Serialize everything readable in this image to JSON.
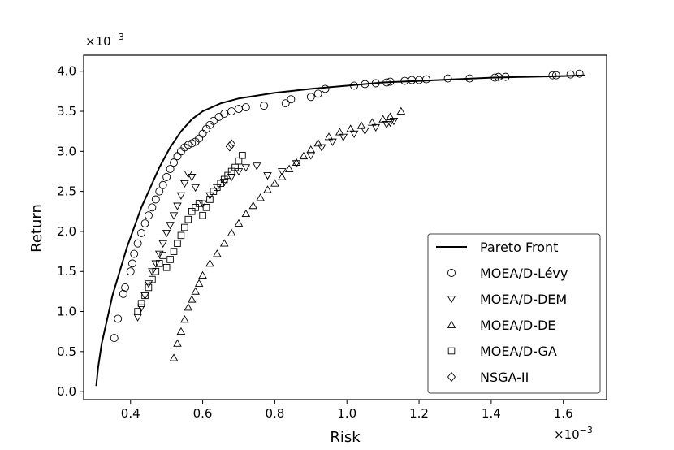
{
  "chart_data": {
    "type": "scatter",
    "title": "",
    "xlabel": "Risk",
    "ylabel": "Return",
    "x_multiplier": "×10",
    "x_multiplier_exp": "−3",
    "y_multiplier": "×10",
    "y_multiplier_exp": "−3",
    "xlim": [
      0.27,
      1.72
    ],
    "ylim": [
      -0.1,
      4.2
    ],
    "xticks": [
      0.4,
      0.6,
      0.8,
      1.0,
      1.2,
      1.4,
      1.6
    ],
    "xtick_labels": [
      "0.4",
      "0.6",
      "0.8",
      "1.0",
      "1.2",
      "1.4",
      "1.6"
    ],
    "yticks": [
      0.0,
      0.5,
      1.0,
      1.5,
      2.0,
      2.5,
      3.0,
      3.5,
      4.0
    ],
    "ytick_labels": [
      "0.0",
      "0.5",
      "1.0",
      "1.5",
      "2.0",
      "2.5",
      "3.0",
      "3.5",
      "4.0"
    ],
    "legend_position": "lower-right",
    "series": [
      {
        "name": "Pareto Front",
        "marker": "line",
        "x": [
          0.305,
          0.31,
          0.32,
          0.335,
          0.35,
          0.37,
          0.39,
          0.41,
          0.43,
          0.455,
          0.48,
          0.51,
          0.54,
          0.57,
          0.6,
          0.65,
          0.7,
          0.8,
          0.9,
          1.0,
          1.1,
          1.2,
          1.3,
          1.4,
          1.5,
          1.6,
          1.66
        ],
        "y": [
          0.07,
          0.3,
          0.6,
          0.9,
          1.2,
          1.5,
          1.8,
          2.05,
          2.3,
          2.55,
          2.8,
          3.05,
          3.25,
          3.4,
          3.5,
          3.6,
          3.66,
          3.73,
          3.78,
          3.82,
          3.86,
          3.88,
          3.9,
          3.92,
          3.93,
          3.94,
          3.95
        ]
      },
      {
        "name": "MOEA/D-Lévy",
        "marker": "circle",
        "x": [
          0.355,
          0.365,
          0.38,
          0.385,
          0.4,
          0.405,
          0.41,
          0.42,
          0.43,
          0.44,
          0.45,
          0.46,
          0.47,
          0.48,
          0.49,
          0.5,
          0.51,
          0.52,
          0.53,
          0.54,
          0.55,
          0.56,
          0.57,
          0.58,
          0.59,
          0.6,
          0.61,
          0.62,
          0.63,
          0.645,
          0.66,
          0.68,
          0.7,
          0.72,
          0.77,
          0.83,
          0.845,
          0.9,
          0.92,
          0.94,
          1.02,
          1.05,
          1.08,
          1.11,
          1.12,
          1.16,
          1.18,
          1.2,
          1.22,
          1.28,
          1.34,
          1.41,
          1.42,
          1.44,
          1.57,
          1.58,
          1.62,
          1.645
        ],
        "y": [
          0.67,
          0.91,
          1.22,
          1.3,
          1.5,
          1.6,
          1.72,
          1.85,
          1.98,
          2.1,
          2.2,
          2.3,
          2.4,
          2.5,
          2.58,
          2.68,
          2.78,
          2.86,
          2.94,
          3.0,
          3.05,
          3.08,
          3.1,
          3.12,
          3.16,
          3.22,
          3.28,
          3.33,
          3.38,
          3.43,
          3.47,
          3.5,
          3.53,
          3.55,
          3.57,
          3.6,
          3.65,
          3.68,
          3.72,
          3.78,
          3.82,
          3.84,
          3.85,
          3.86,
          3.87,
          3.88,
          3.89,
          3.89,
          3.9,
          3.91,
          3.91,
          3.92,
          3.93,
          3.93,
          3.95,
          3.95,
          3.96,
          3.97
        ]
      },
      {
        "name": "MOEA/D-DEM",
        "marker": "triangle-down",
        "x": [
          0.42,
          0.43,
          0.44,
          0.45,
          0.46,
          0.47,
          0.48,
          0.49,
          0.5,
          0.51,
          0.52,
          0.53,
          0.54,
          0.55,
          0.56,
          0.57,
          0.58,
          0.6,
          0.62,
          0.64,
          0.66,
          0.68,
          0.7,
          0.72,
          0.75,
          0.78,
          0.82,
          0.86,
          0.9,
          0.93,
          0.96,
          0.99,
          1.02,
          1.05,
          1.08,
          1.11,
          1.12,
          1.13
        ],
        "y": [
          0.93,
          1.05,
          1.2,
          1.35,
          1.5,
          1.6,
          1.72,
          1.85,
          1.98,
          2.08,
          2.2,
          2.32,
          2.45,
          2.6,
          2.72,
          2.68,
          2.55,
          2.35,
          2.45,
          2.55,
          2.62,
          2.68,
          2.75,
          2.8,
          2.82,
          2.7,
          2.75,
          2.85,
          2.95,
          3.05,
          3.12,
          3.18,
          3.22,
          3.26,
          3.3,
          3.34,
          3.36,
          3.38
        ]
      },
      {
        "name": "MOEA/D-DE",
        "marker": "triangle-up",
        "x": [
          0.52,
          0.53,
          0.54,
          0.55,
          0.56,
          0.57,
          0.58,
          0.59,
          0.6,
          0.62,
          0.64,
          0.66,
          0.68,
          0.7,
          0.72,
          0.74,
          0.76,
          0.78,
          0.8,
          0.82,
          0.84,
          0.86,
          0.88,
          0.9,
          0.92,
          0.95,
          0.98,
          1.01,
          1.04,
          1.07,
          1.1,
          1.12,
          1.15
        ],
        "y": [
          0.42,
          0.6,
          0.75,
          0.9,
          1.05,
          1.15,
          1.25,
          1.35,
          1.45,
          1.6,
          1.72,
          1.85,
          1.98,
          2.1,
          2.22,
          2.32,
          2.42,
          2.52,
          2.6,
          2.68,
          2.78,
          2.86,
          2.94,
          3.02,
          3.1,
          3.18,
          3.24,
          3.28,
          3.32,
          3.36,
          3.4,
          3.43,
          3.5
        ]
      },
      {
        "name": "MOEA/D-GA",
        "marker": "square",
        "x": [
          0.42,
          0.43,
          0.44,
          0.45,
          0.46,
          0.47,
          0.48,
          0.49,
          0.5,
          0.51,
          0.52,
          0.53,
          0.54,
          0.55,
          0.56,
          0.57,
          0.58,
          0.59,
          0.6,
          0.61,
          0.62,
          0.63,
          0.64,
          0.65,
          0.66,
          0.67,
          0.68,
          0.69,
          0.7,
          0.71
        ],
        "y": [
          1.0,
          1.1,
          1.2,
          1.3,
          1.4,
          1.5,
          1.6,
          1.7,
          1.55,
          1.65,
          1.75,
          1.85,
          1.95,
          2.05,
          2.15,
          2.25,
          2.3,
          2.35,
          2.2,
          2.3,
          2.4,
          2.5,
          2.55,
          2.6,
          2.65,
          2.7,
          2.75,
          2.8,
          2.88,
          2.95
        ]
      },
      {
        "name": "NSGA-II",
        "marker": "diamond",
        "x": [
          0.675,
          0.68
        ],
        "y": [
          3.06,
          3.09
        ]
      }
    ]
  }
}
